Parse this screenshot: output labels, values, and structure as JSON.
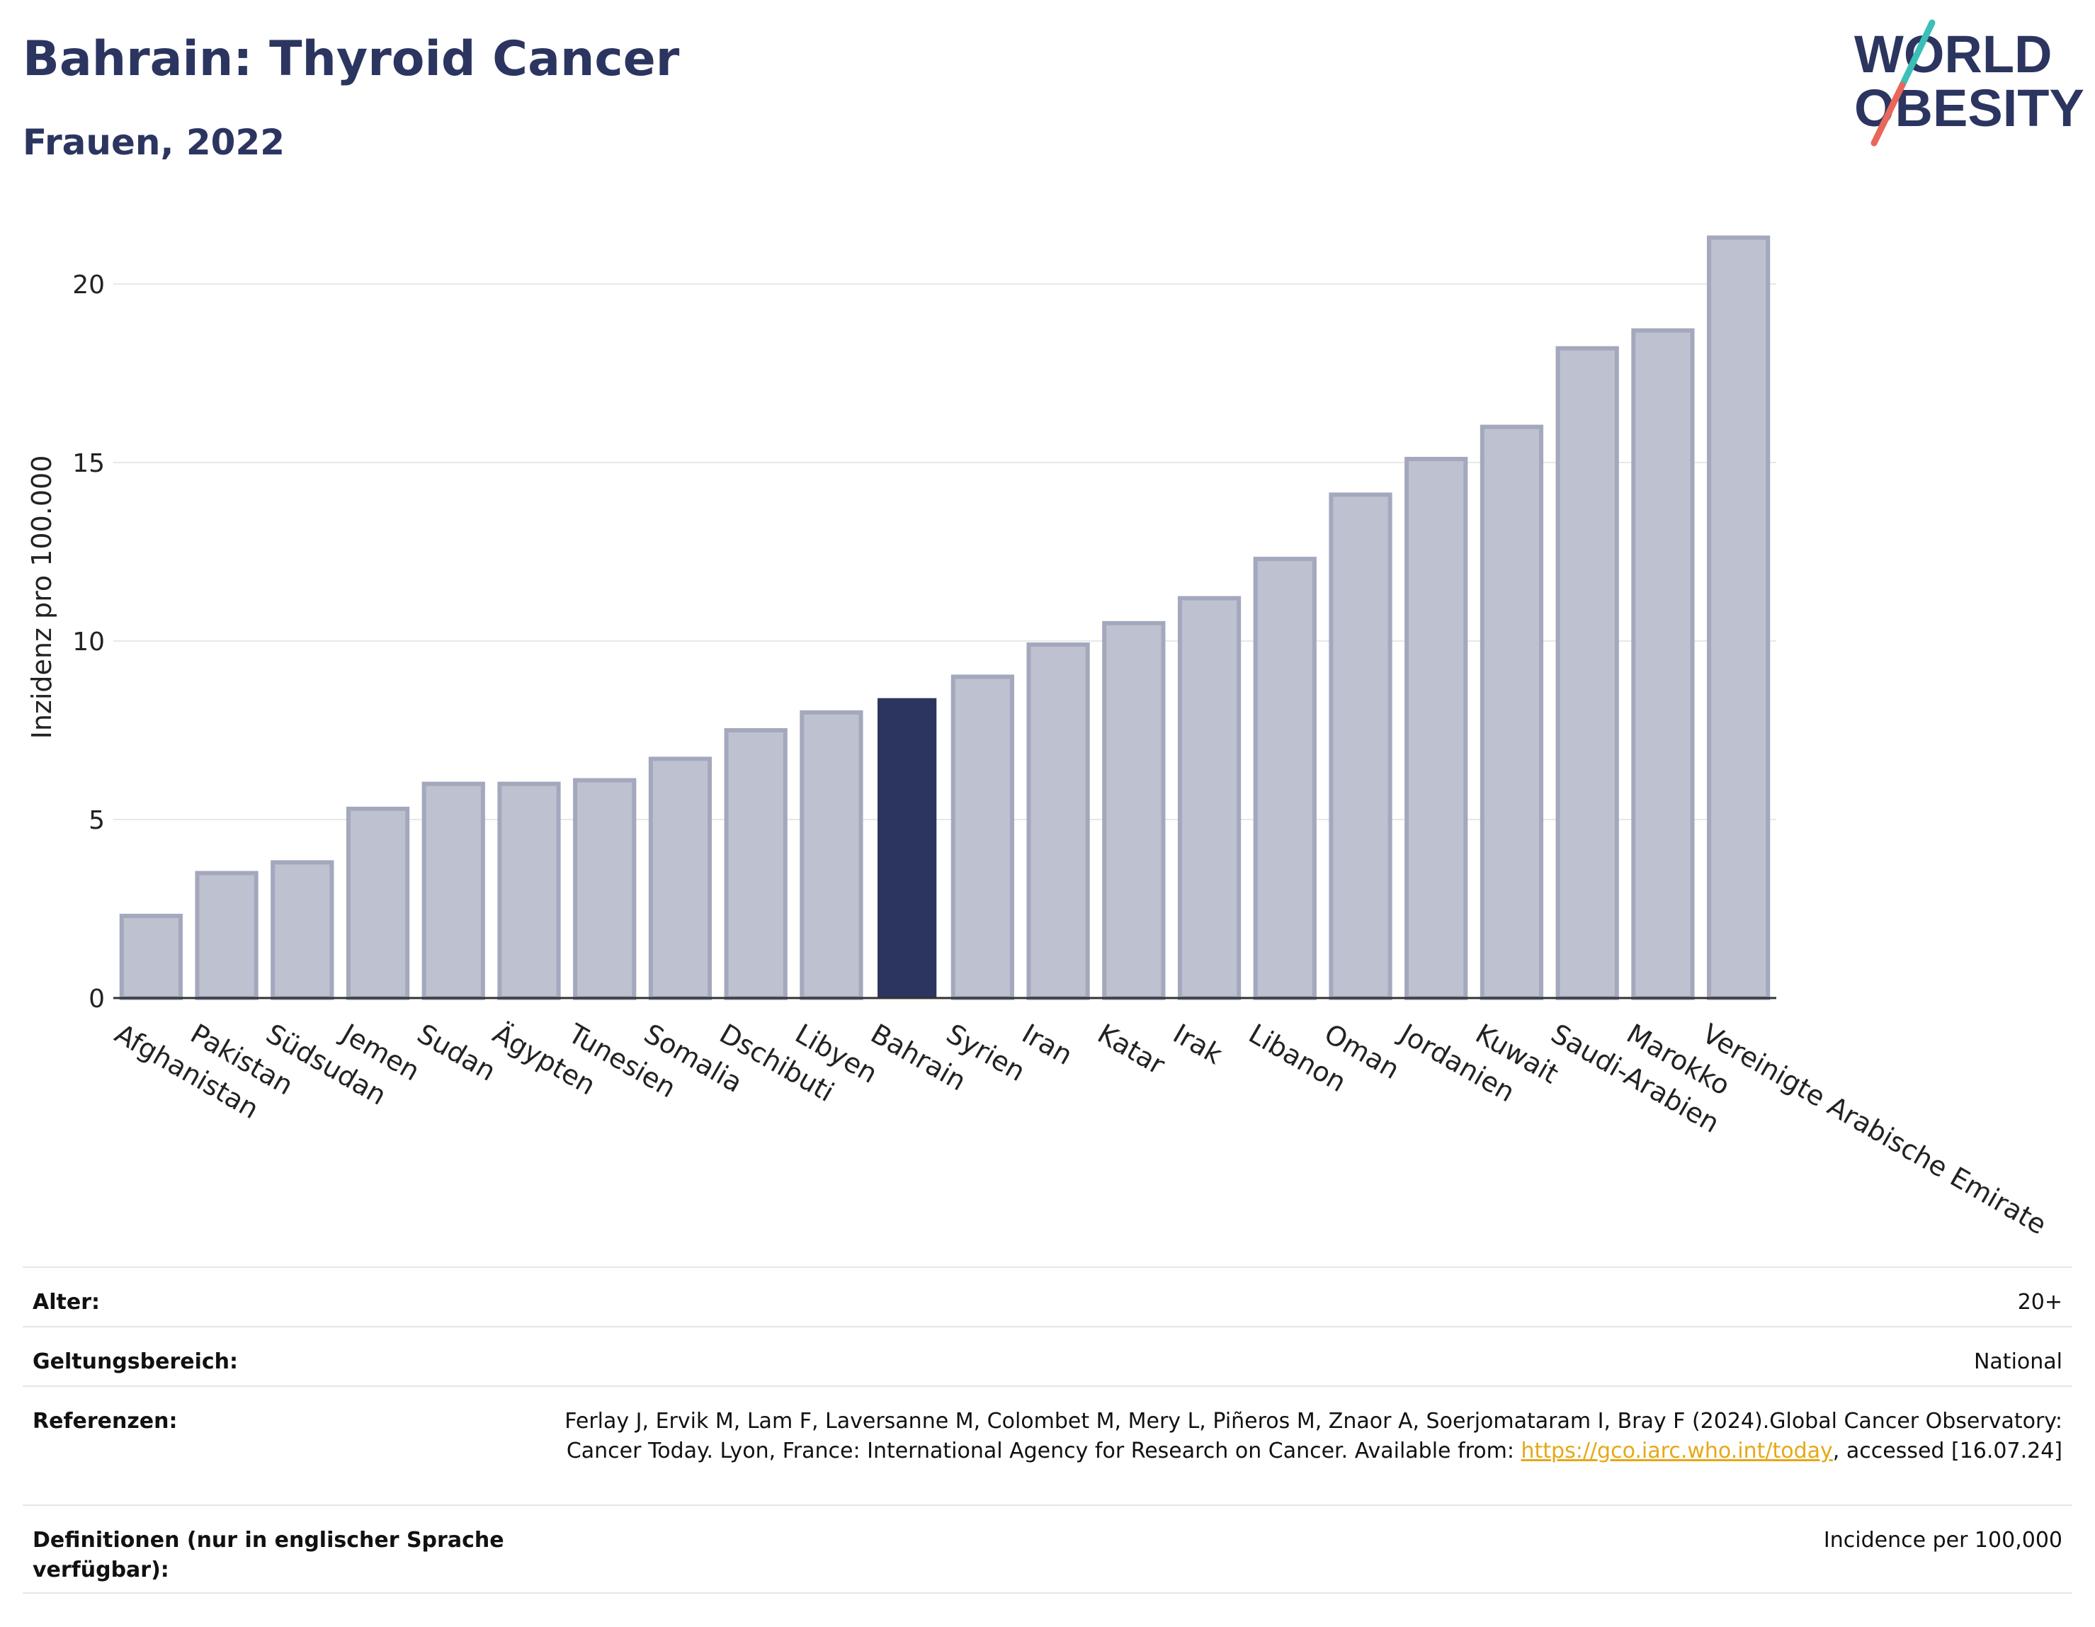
{
  "header": {
    "title": "Bahrain: Thyroid Cancer",
    "subtitle": "Frauen, 2022"
  },
  "logo": {
    "line1": "WORLD",
    "line2": "OBESITY",
    "color": "#2b3560",
    "accent_teal": "#3bbfb8",
    "accent_red": "#e8675a"
  },
  "colors": {
    "bar": "#bec1cf",
    "bar_stroke": "#a3a8bd",
    "highlight": "#2b3560",
    "grid": "#e8e8e8",
    "axis": "#333333"
  },
  "chart_data": {
    "type": "bar",
    "title": "",
    "xlabel": "",
    "ylabel": "Inzidenz pro 100.000",
    "ylim": [
      0,
      22
    ],
    "yticks": [
      0,
      5,
      10,
      15,
      20
    ],
    "grid": true,
    "highlight": "Bahrain",
    "categories": [
      "Afghanistan",
      "Pakistan",
      "Südsudan",
      "Jemen",
      "Sudan",
      "Ägypten",
      "Tunesien",
      "Somalia",
      "Dschibuti",
      "Libyen",
      "Bahrain",
      "Syrien",
      "Iran",
      "Katar",
      "Irak",
      "Libanon",
      "Oman",
      "Jordanien",
      "Kuwait",
      "Saudi-Arabien",
      "Marokko",
      "Vereinigte Arabische Emirate"
    ],
    "values": [
      2.3,
      3.5,
      3.8,
      5.3,
      6.0,
      6.0,
      6.1,
      6.7,
      7.5,
      8.0,
      8.4,
      9.0,
      9.9,
      10.5,
      11.2,
      12.3,
      14.1,
      15.1,
      16.0,
      18.2,
      18.7,
      21.3
    ]
  },
  "meta": {
    "rows": [
      {
        "label": "Alter:",
        "value": "20+"
      },
      {
        "label": "Geltungsbereich:",
        "value": "National"
      },
      {
        "label": "Referenzen:",
        "value_pre": "Ferlay J, Ervik M, Lam F, Laversanne M, Colombet M, Mery L, Piñeros M, Znaor A, Soerjomataram I, Bray F (2024).Global Cancer Observatory: Cancer Today. Lyon, France: International Agency for Research on Cancer. Available from: ",
        "link": "https://gco.iarc.who.int/today",
        "value_post": ", accessed [16.07.24]"
      },
      {
        "label": "Definitionen (nur in englischer Sprache verfügbar):",
        "value": "Incidence per 100,000"
      }
    ]
  }
}
